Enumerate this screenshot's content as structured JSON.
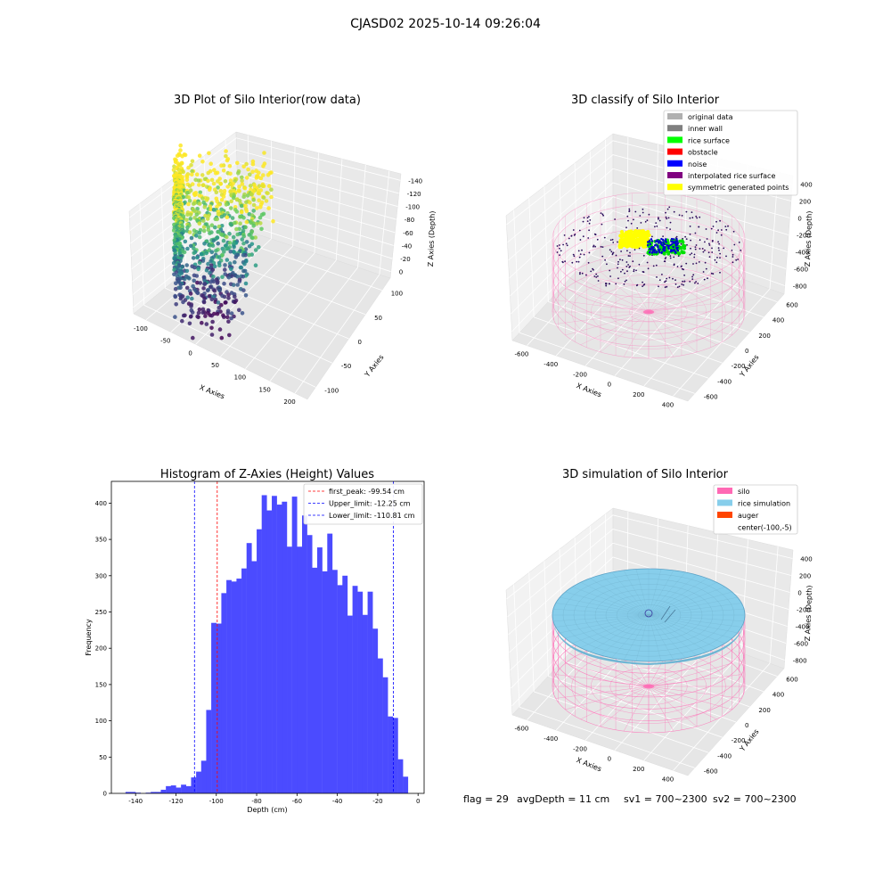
{
  "figure": {
    "title": "CJASD02 2025-10-14 09:26:04",
    "footer": {
      "flag": "flag = 29",
      "avg_depth": "avgDepth = 11 cm",
      "sv1": "sv1 = 700~2300",
      "sv2": "sv2 = 700~2300"
    }
  },
  "panels": {
    "raw": {
      "title": "3D Plot of Silo Interior(row data)",
      "xlabel": "X Axies",
      "ylabel": "Y Axies",
      "zlabel": "Z Axies (Depth)",
      "xticks": [
        "-100",
        "-50",
        "0",
        "50",
        "100",
        "150",
        "200"
      ],
      "yticks": [
        "100",
        "50",
        "0",
        "-50",
        "-100"
      ],
      "zticks": [
        "0",
        "-20",
        "-40",
        "-60",
        "-80",
        "-100",
        "-120",
        "-140"
      ]
    },
    "classify": {
      "title": "3D classify of Silo Interior",
      "xlabel": "X Axies",
      "ylabel": "Y Axies",
      "zlabel": "Z Axies (Depth)",
      "xticks": [
        "-600",
        "-400",
        "-200",
        "0",
        "200",
        "400"
      ],
      "yticks": [
        "600",
        "400",
        "200",
        "0",
        "-200",
        "-400",
        "-600"
      ],
      "zticks": [
        "400",
        "200",
        "0",
        "-200",
        "-400",
        "-600",
        "-800"
      ],
      "legend": [
        {
          "label": "original data",
          "color": "#b0b0b0"
        },
        {
          "label": "inner wall",
          "color": "#808080"
        },
        {
          "label": "rice surface",
          "color": "#00ff00"
        },
        {
          "label": "obstacle",
          "color": "#ff0000"
        },
        {
          "label": "noise",
          "color": "#0000ff"
        },
        {
          "label": "interpolated rice surface",
          "color": "#800080"
        },
        {
          "label": "symmetric generated points",
          "color": "#ffff00"
        }
      ]
    },
    "simulation": {
      "title": "3D simulation of Silo Interior",
      "xlabel": "X Axies",
      "ylabel": "Y Axies",
      "zlabel": "Z Axies (Depth)",
      "xticks": [
        "-600",
        "-400",
        "-200",
        "0",
        "200",
        "400"
      ],
      "yticks": [
        "600",
        "400",
        "200",
        "0",
        "-200",
        "-400",
        "-600"
      ],
      "zticks": [
        "400",
        "200",
        "0",
        "-200",
        "-400",
        "-600",
        "-800"
      ],
      "legend": [
        {
          "label": "silo",
          "color": "#ff69b4"
        },
        {
          "label": "rice simulation",
          "color": "#87ceeb"
        },
        {
          "label": "auger",
          "color": "#ff4500"
        },
        {
          "label": "center(-100,-5)",
          "color": "none"
        }
      ]
    }
  },
  "chart_data": [
    {
      "type": "scatter",
      "subtype": "3d",
      "title": "3D Plot of Silo Interior(row data)",
      "xlabel": "X Axies",
      "ylabel": "Y Axies",
      "zlabel": "Z Axies (Depth)",
      "xlim": [
        -130,
        210
      ],
      "ylim": [
        -120,
        120
      ],
      "zlim": [
        -150,
        5
      ],
      "colormap": "viridis"
    },
    {
      "type": "scatter",
      "subtype": "3d",
      "title": "3D classify of Silo Interior",
      "xlabel": "X Axies",
      "ylabel": "Y Axies",
      "zlabel": "Z Axies (Depth)",
      "xlim": [
        -700,
        500
      ],
      "ylim": [
        -700,
        700
      ],
      "zlim": [
        -900,
        450
      ]
    },
    {
      "type": "histogram",
      "title": "Histogram of Z-Axies (Height) Values",
      "xlabel": "Depth (cm)",
      "ylabel": "Frequency",
      "xlim": [
        -152,
        3
      ],
      "ylim": [
        0,
        430
      ],
      "xticks": [
        -140,
        -120,
        -100,
        -80,
        -60,
        -40,
        -20,
        0
      ],
      "yticks": [
        0,
        50,
        100,
        150,
        200,
        250,
        300,
        350,
        400
      ],
      "bin_width": 2.5,
      "bins_left": [
        -145.0,
        -142.5,
        -140.0,
        -137.5,
        -135.0,
        -132.5,
        -130.0,
        -127.5,
        -125.0,
        -122.5,
        -120.0,
        -117.5,
        -115.0,
        -112.5,
        -110.0,
        -107.5,
        -105.0,
        -102.5,
        -100.0,
        -97.5,
        -95.0,
        -92.5,
        -90.0,
        -87.5,
        -85.0,
        -82.5,
        -80.0,
        -77.5,
        -75.0,
        -72.5,
        -70.0,
        -67.5,
        -65.0,
        -62.5,
        -60.0,
        -57.5,
        -55.0,
        -52.5,
        -50.0,
        -47.5,
        -45.0,
        -42.5,
        -40.0,
        -37.5,
        -35.0,
        -32.5,
        -30.0,
        -27.5,
        -25.0,
        -22.5,
        -20.0,
        -17.5,
        -15.0,
        -12.5,
        -10.0,
        -7.5,
        -5.0
      ],
      "values": [
        2,
        2,
        1,
        0,
        1,
        2,
        2,
        5,
        10,
        11,
        8,
        12,
        10,
        22,
        30,
        45,
        115,
        235,
        234,
        276,
        294,
        292,
        296,
        310,
        345,
        320,
        364,
        411,
        390,
        410,
        398,
        402,
        340,
        409,
        340,
        383,
        356,
        311,
        339,
        306,
        358,
        308,
        287,
        300,
        245,
        286,
        278,
        246,
        278,
        227,
        186,
        160,
        106,
        104,
        47,
        23,
        0
      ],
      "lines": [
        {
          "name": "first_peak: -99.54 cm",
          "x": -99.54,
          "color": "#ff0000"
        },
        {
          "name": "Upper_limit: -12.25 cm",
          "x": -12.25,
          "color": "#0000ff"
        },
        {
          "name": "Lower_limit: -110.81 cm",
          "x": -110.81,
          "color": "#0000ff"
        }
      ],
      "bar_color": "#4b4bff"
    },
    {
      "type": "scatter",
      "subtype": "3d-surface",
      "title": "3D simulation of Silo Interior",
      "xlabel": "X Axies",
      "ylabel": "Y Axies",
      "zlabel": "Z Axies (Depth)",
      "xlim": [
        -700,
        500
      ],
      "ylim": [
        -700,
        700
      ],
      "zlim": [
        -900,
        450
      ]
    }
  ]
}
